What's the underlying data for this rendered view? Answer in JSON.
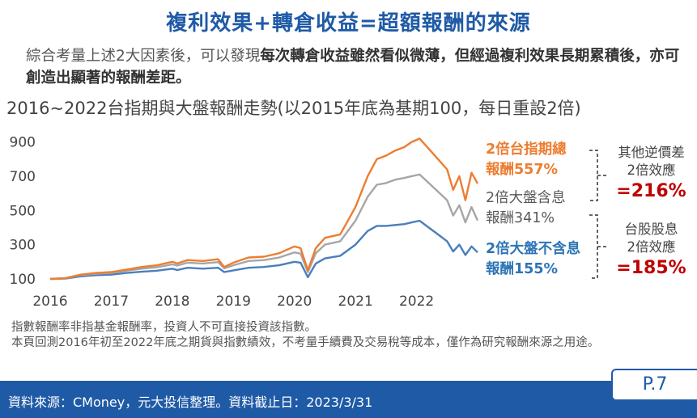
{
  "title": "複利效果+轉倉收益=超額報酬的來源",
  "intro": {
    "plain": "綜合考量上述2大因素後，可以發現",
    "bold": "每次轉倉收益雖然看似微薄，但經過複利效果長期累積後，亦可創造出顯著的報酬差距。"
  },
  "chart_data": {
    "type": "line",
    "title": "2016~2022台指期與大盤報酬走勢(以2015年底為基期100，每日重設2倍)",
    "xlabel": "",
    "ylabel": "",
    "x_ticks": [
      "2016",
      "2017",
      "2018",
      "2019",
      "2020",
      "2021",
      "2022"
    ],
    "y_ticks": [
      100,
      300,
      500,
      700,
      900
    ],
    "ylim": [
      100,
      950
    ],
    "xlim": [
      2016.0,
      2023.0
    ],
    "grid": false,
    "series": [
      {
        "name": "2倍台指期總報酬557%",
        "color": "#ed7d31",
        "x": [
          2016.0,
          2016.25,
          2016.5,
          2016.75,
          2017.0,
          2017.25,
          2017.5,
          2017.75,
          2018.0,
          2018.08,
          2018.25,
          2018.5,
          2018.75,
          2018.85,
          2019.0,
          2019.25,
          2019.5,
          2019.75,
          2020.0,
          2020.1,
          2020.22,
          2020.35,
          2020.5,
          2020.75,
          2021.0,
          2021.2,
          2021.35,
          2021.5,
          2021.65,
          2021.8,
          2021.92,
          2022.05,
          2022.2,
          2022.35,
          2022.5,
          2022.6,
          2022.7,
          2022.8,
          2022.9,
          2023.0
        ],
        "values": [
          100,
          105,
          125,
          135,
          140,
          155,
          170,
          180,
          200,
          190,
          210,
          205,
          215,
          170,
          195,
          225,
          230,
          250,
          290,
          280,
          150,
          280,
          340,
          360,
          520,
          700,
          800,
          820,
          850,
          870,
          900,
          920,
          860,
          800,
          740,
          620,
          700,
          560,
          720,
          657
        ]
      },
      {
        "name": "2倍大盤含息報酬341%",
        "color": "#a6a6a6",
        "x": [
          2016.0,
          2016.25,
          2016.5,
          2016.75,
          2017.0,
          2017.25,
          2017.5,
          2017.75,
          2018.0,
          2018.08,
          2018.25,
          2018.5,
          2018.75,
          2018.85,
          2019.0,
          2019.25,
          2019.5,
          2019.75,
          2020.0,
          2020.1,
          2020.22,
          2020.35,
          2020.5,
          2020.75,
          2021.0,
          2021.2,
          2021.35,
          2021.5,
          2021.65,
          2021.8,
          2021.92,
          2022.05,
          2022.2,
          2022.35,
          2022.5,
          2022.6,
          2022.7,
          2022.8,
          2022.9,
          2023.0
        ],
        "values": [
          100,
          104,
          122,
          130,
          135,
          148,
          160,
          168,
          185,
          178,
          195,
          190,
          198,
          162,
          180,
          205,
          210,
          225,
          255,
          248,
          140,
          250,
          300,
          320,
          440,
          580,
          650,
          660,
          680,
          690,
          700,
          710,
          660,
          610,
          560,
          470,
          530,
          430,
          520,
          441
        ]
      },
      {
        "name": "2倍大盤不含息報酬155%",
        "color": "#4a7ebb",
        "x": [
          2016.0,
          2016.25,
          2016.5,
          2016.75,
          2017.0,
          2017.25,
          2017.5,
          2017.75,
          2018.0,
          2018.08,
          2018.25,
          2018.5,
          2018.75,
          2018.85,
          2019.0,
          2019.25,
          2019.5,
          2019.75,
          2020.0,
          2020.1,
          2020.22,
          2020.35,
          2020.5,
          2020.75,
          2021.0,
          2021.2,
          2021.35,
          2021.5,
          2021.65,
          2021.8,
          2021.92,
          2022.05,
          2022.2,
          2022.35,
          2022.5,
          2022.6,
          2022.7,
          2022.8,
          2022.9,
          2023.0
        ],
        "values": [
          100,
          102,
          115,
          122,
          125,
          135,
          142,
          148,
          160,
          152,
          165,
          160,
          165,
          140,
          150,
          165,
          170,
          180,
          200,
          195,
          110,
          190,
          220,
          235,
          300,
          380,
          410,
          410,
          415,
          420,
          430,
          440,
          400,
          360,
          320,
          260,
          300,
          240,
          290,
          255
        ]
      }
    ],
    "annotations": [
      {
        "line1": "2倍台指期總",
        "line2": "報酬557%",
        "color": "#ed7d31"
      },
      {
        "line1": "2倍大盤含息",
        "line2": "報酬341%",
        "color": "#595959"
      },
      {
        "line1": "2倍大盤不含息",
        "line2": "報酬155%",
        "color": "#2e75b6"
      }
    ],
    "diff_notes": [
      {
        "line1": "其他逆價差",
        "line2": "2倍效應",
        "value": "=216%"
      },
      {
        "line1": "台股股息",
        "line2": "2倍效應",
        "value": "=185%"
      }
    ]
  },
  "notes": [
    "指數報酬率非指基金報酬率，投資人不可直接投資該指數。",
    "本頁回測2016年初至2022年底之期貨與指數績效，不考量手續費及交易稅等成本，僅作為研究報酬來源之用途。"
  ],
  "footer": {
    "source": "資料來源：CMoney，元大投信整理。資料截止日：2023/3/31",
    "page": "P.7"
  }
}
